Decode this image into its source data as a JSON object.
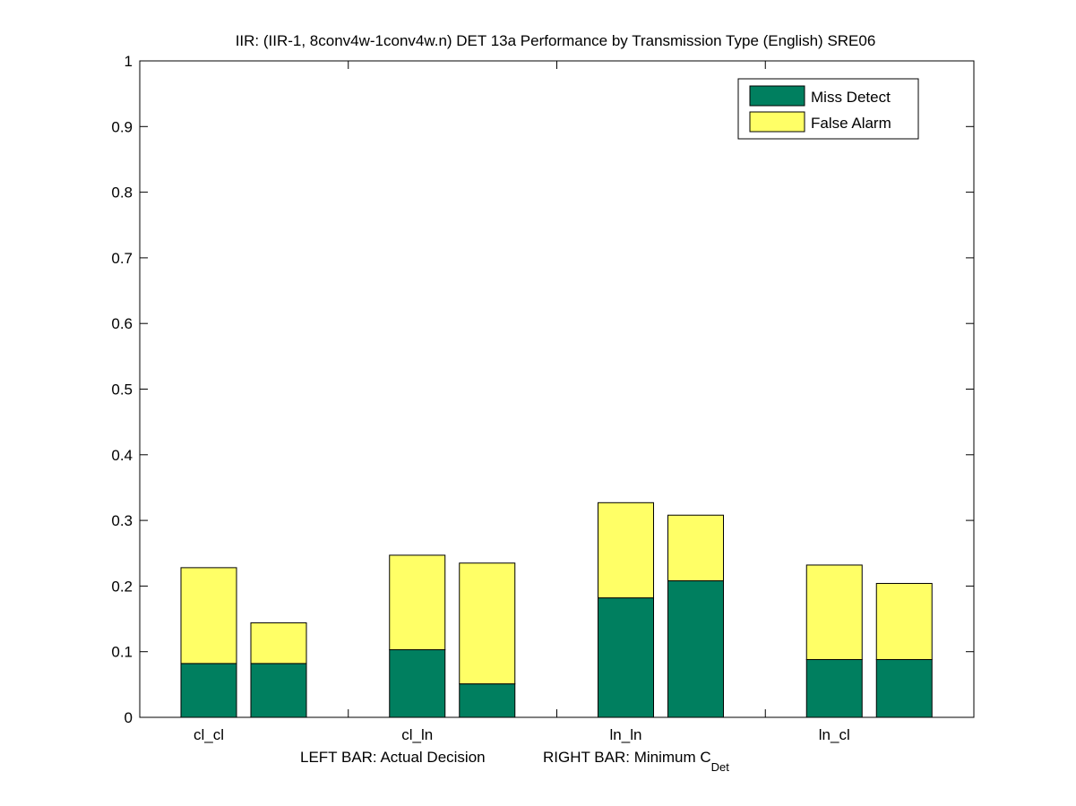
{
  "chart_data": {
    "type": "bar",
    "stacked": true,
    "title": "IIR: (IIR-1, 8conv4w-1conv4w.n) DET 13a Performance by Transmission Type (English) SRE06",
    "categories": [
      "cl_cl",
      "cl_ln",
      "ln_ln",
      "ln_cl"
    ],
    "xlabel_left": "LEFT BAR: Actual Decision",
    "xlabel_right": "RIGHT BAR: Minimum C",
    "xlabel_right_sub": "Det",
    "ylim": [
      0,
      1
    ],
    "yticks": [
      "0",
      "0.1",
      "0.2",
      "0.3",
      "0.4",
      "0.5",
      "0.6",
      "0.7",
      "0.8",
      "0.9",
      "1"
    ],
    "legend_position": "top-right",
    "series": [
      {
        "name": "Miss Detect",
        "color": "#007f5f",
        "left_bar": [
          0.082,
          0.103,
          0.182,
          0.088
        ],
        "right_bar": [
          0.082,
          0.051,
          0.208,
          0.088
        ]
      },
      {
        "name": "False Alarm",
        "color": "#ffff66",
        "left_bar": [
          0.146,
          0.144,
          0.145,
          0.144
        ],
        "right_bar": [
          0.062,
          0.184,
          0.1,
          0.116
        ]
      }
    ]
  }
}
